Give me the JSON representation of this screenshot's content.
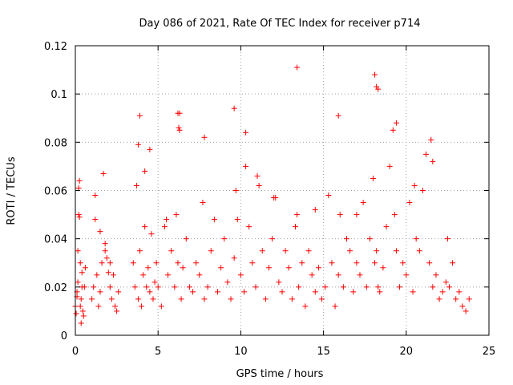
{
  "chart_data": {
    "type": "scatter",
    "title": "Day 086 of 2021, Rate Of TEC Index for receiver p714",
    "xlabel": "GPS time / hours",
    "ylabel": "ROTI / TECUs",
    "xlim": [
      0,
      25
    ],
    "ylim": [
      0,
      0.12
    ],
    "xticks": [
      0,
      5,
      10,
      15,
      20,
      25
    ],
    "xtick_labels": [
      "0",
      "5",
      "10",
      "15",
      "20",
      "25"
    ],
    "yticks": [
      0,
      0.02,
      0.04,
      0.06,
      0.08,
      0.1,
      0.12
    ],
    "ytick_labels": [
      "0",
      "0.02",
      "0.04",
      "0.06",
      "0.08",
      "0.1",
      "0.12"
    ],
    "grid": true,
    "marker": "+",
    "color": "#ff0000",
    "series": [
      {
        "name": "ROTI",
        "x": [
          0.0,
          0.1,
          0.15,
          0.2,
          0.25,
          0.3,
          0.35,
          0.4,
          0.45,
          0.5,
          0.55,
          0.6,
          0.2,
          0.25,
          0.15,
          0.3,
          0.35,
          0.1,
          0.05,
          0.4,
          1.0,
          1.1,
          1.2,
          1.3,
          1.4,
          1.5,
          1.6,
          1.7,
          1.8,
          1.9,
          2.0,
          2.1,
          2.2,
          2.3,
          2.4,
          2.5,
          2.6,
          1.2,
          1.5,
          1.8,
          2.1,
          3.5,
          3.6,
          3.7,
          3.8,
          3.9,
          4.0,
          4.1,
          4.2,
          4.3,
          4.4,
          4.5,
          4.6,
          4.7,
          4.8,
          4.9,
          5.0,
          5.2,
          5.4,
          5.6,
          5.8,
          6.0,
          6.1,
          6.2,
          6.3,
          6.4,
          6.5,
          6.7,
          6.9,
          7.1,
          7.3,
          7.5,
          7.7,
          7.8,
          8.0,
          8.2,
          8.4,
          8.6,
          8.8,
          9.0,
          9.2,
          9.4,
          9.6,
          9.7,
          9.8,
          10.0,
          10.2,
          10.3,
          10.5,
          10.7,
          10.9,
          11.1,
          11.3,
          11.5,
          11.7,
          11.9,
          12.1,
          12.3,
          12.5,
          12.7,
          12.9,
          13.1,
          13.3,
          13.4,
          13.5,
          13.7,
          13.9,
          14.1,
          14.3,
          14.5,
          14.7,
          14.9,
          15.1,
          15.3,
          15.5,
          15.7,
          15.9,
          16.0,
          16.2,
          16.4,
          16.6,
          16.8,
          17.0,
          17.2,
          17.4,
          17.6,
          17.8,
          18.0,
          18.1,
          18.2,
          18.3,
          18.4,
          18.6,
          18.8,
          19.0,
          19.2,
          19.3,
          19.4,
          19.6,
          19.8,
          20.0,
          20.2,
          20.4,
          20.6,
          20.8,
          21.0,
          21.2,
          21.4,
          21.6,
          21.8,
          22.0,
          22.2,
          22.4,
          22.6,
          22.8,
          23.0,
          23.2,
          23.4,
          23.6,
          23.8,
          3.8,
          3.9,
          4.5,
          6.2,
          6.25,
          6.3,
          9.6,
          10.3,
          13.4,
          15.9,
          18.1,
          18.2,
          18.3,
          19.4,
          21.5,
          21.6,
          7.8,
          11.0,
          12.0,
          14.5,
          17.0,
          20.5,
          22.5,
          4.2,
          5.5
        ],
        "y": [
          0.012,
          0.018,
          0.022,
          0.05,
          0.064,
          0.03,
          0.015,
          0.026,
          0.01,
          0.008,
          0.02,
          0.028,
          0.061,
          0.049,
          0.035,
          0.012,
          0.005,
          0.016,
          0.009,
          0.02,
          0.015,
          0.02,
          0.058,
          0.025,
          0.012,
          0.018,
          0.03,
          0.067,
          0.035,
          0.032,
          0.026,
          0.02,
          0.015,
          0.025,
          0.012,
          0.01,
          0.018,
          0.048,
          0.043,
          0.038,
          0.03,
          0.03,
          0.02,
          0.062,
          0.015,
          0.035,
          0.012,
          0.025,
          0.068,
          0.02,
          0.028,
          0.018,
          0.042,
          0.015,
          0.022,
          0.03,
          0.02,
          0.012,
          0.045,
          0.025,
          0.035,
          0.02,
          0.05,
          0.03,
          0.085,
          0.015,
          0.028,
          0.04,
          0.02,
          0.018,
          0.03,
          0.025,
          0.055,
          0.015,
          0.02,
          0.035,
          0.048,
          0.018,
          0.028,
          0.04,
          0.022,
          0.015,
          0.032,
          0.06,
          0.048,
          0.025,
          0.018,
          0.07,
          0.045,
          0.03,
          0.02,
          0.062,
          0.035,
          0.015,
          0.028,
          0.04,
          0.057,
          0.022,
          0.018,
          0.035,
          0.028,
          0.015,
          0.045,
          0.05,
          0.02,
          0.03,
          0.012,
          0.035,
          0.025,
          0.018,
          0.028,
          0.015,
          0.02,
          0.058,
          0.03,
          0.012,
          0.025,
          0.05,
          0.02,
          0.04,
          0.035,
          0.018,
          0.03,
          0.025,
          0.055,
          0.02,
          0.04,
          0.065,
          0.03,
          0.035,
          0.02,
          0.018,
          0.028,
          0.045,
          0.07,
          0.085,
          0.05,
          0.035,
          0.02,
          0.03,
          0.025,
          0.055,
          0.018,
          0.04,
          0.035,
          0.06,
          0.075,
          0.03,
          0.02,
          0.025,
          0.015,
          0.018,
          0.022,
          0.02,
          0.03,
          0.015,
          0.018,
          0.012,
          0.01,
          0.015,
          0.079,
          0.091,
          0.077,
          0.092,
          0.086,
          0.092,
          0.094,
          0.084,
          0.111,
          0.091,
          0.108,
          0.103,
          0.102,
          0.088,
          0.081,
          0.072,
          0.082,
          0.066,
          0.057,
          0.052,
          0.05,
          0.062,
          0.04,
          0.045,
          0.048
        ]
      }
    ]
  }
}
